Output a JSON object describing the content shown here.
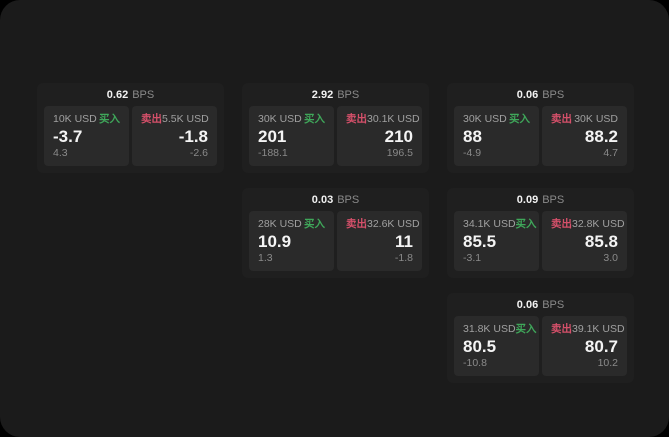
{
  "labels": {
    "buy": "买入",
    "sell": "卖出",
    "bps_unit": "BPS"
  },
  "colors": {
    "page_bg": "#1b1b1b",
    "card_bg": "#1f1f1f",
    "panel_bg": "#2a2a2a",
    "buy_green": "#3fa75a",
    "sell_red": "#d5506a",
    "text_primary": "#f4f4f4",
    "text_muted": "#8a8a8a"
  },
  "cards": [
    {
      "bps": "0.62",
      "buy": {
        "amount": "10K USD",
        "price": "-3.7",
        "sub": "4.3"
      },
      "sell": {
        "amount": "5.5K USD",
        "price": "-1.8",
        "sub": "-2.6"
      }
    },
    {
      "bps": "2.92",
      "buy": {
        "amount": "30K USD",
        "price": "201",
        "sub": "-188.1"
      },
      "sell": {
        "amount": "30.1K USD",
        "price": "210",
        "sub": "196.5"
      }
    },
    {
      "bps": "0.06",
      "buy": {
        "amount": "30K USD",
        "price": "88",
        "sub": "-4.9"
      },
      "sell": {
        "amount": "30K USD",
        "price": "88.2",
        "sub": "4.7"
      }
    },
    {
      "bps": "0.03",
      "buy": {
        "amount": "28K USD",
        "price": "10.9",
        "sub": "1.3"
      },
      "sell": {
        "amount": "32.6K USD",
        "price": "11",
        "sub": "-1.8"
      }
    },
    {
      "bps": "0.09",
      "buy": {
        "amount": "34.1K USD",
        "price": "85.5",
        "sub": "-3.1"
      },
      "sell": {
        "amount": "32.8K USD",
        "price": "85.8",
        "sub": "3.0"
      }
    },
    {
      "bps": "0.06",
      "buy": {
        "amount": "31.8K USD",
        "price": "80.5",
        "sub": "-10.8"
      },
      "sell": {
        "amount": "39.1K USD",
        "price": "80.7",
        "sub": "10.2"
      }
    }
  ]
}
